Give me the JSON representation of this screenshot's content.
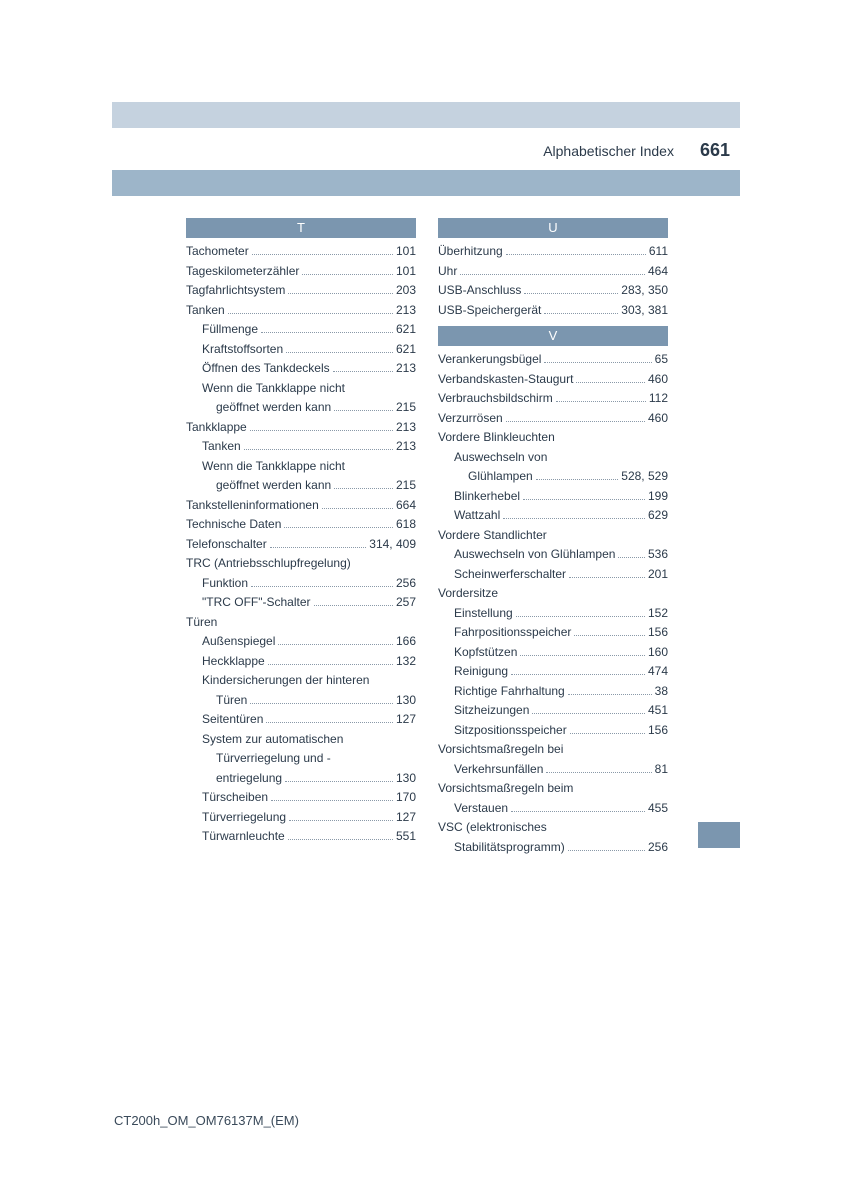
{
  "header": {
    "title": "Alphabetischer Index",
    "page_number": "661"
  },
  "footer": "CT200h_OM_OM76137M_(EM)",
  "colors": {
    "top_bar": "#c5d2df",
    "second_bar": "#9db5c9",
    "section_bg": "#7b96af",
    "section_fg": "#ffffff",
    "text": "#2b3a4a",
    "dots": "#8a99a8",
    "page_bg": "#ffffff"
  },
  "left_column": [
    {
      "type": "section",
      "label": "T"
    },
    {
      "type": "entry",
      "indent": 0,
      "label": "Tachometer",
      "page": "101"
    },
    {
      "type": "entry",
      "indent": 0,
      "label": "Tageskilometerzähler",
      "page": "101"
    },
    {
      "type": "entry",
      "indent": 0,
      "label": "Tagfahrlichtsystem",
      "page": "203"
    },
    {
      "type": "entry",
      "indent": 0,
      "label": "Tanken",
      "page": "213"
    },
    {
      "type": "entry",
      "indent": 1,
      "label": "Füllmenge",
      "page": "621"
    },
    {
      "type": "entry",
      "indent": 1,
      "label": "Kraftstoffsorten",
      "page": "621"
    },
    {
      "type": "entry",
      "indent": 1,
      "label": "Öffnen des Tankdeckels",
      "page": "213"
    },
    {
      "type": "entry",
      "indent": 1,
      "label": "Wenn die Tankklappe nicht",
      "page": ""
    },
    {
      "type": "entry",
      "indent": 2,
      "label": "geöffnet werden kann",
      "page": "215"
    },
    {
      "type": "entry",
      "indent": 0,
      "label": "Tankklappe",
      "page": "213"
    },
    {
      "type": "entry",
      "indent": 1,
      "label": "Tanken",
      "page": "213"
    },
    {
      "type": "entry",
      "indent": 1,
      "label": "Wenn die Tankklappe nicht",
      "page": ""
    },
    {
      "type": "entry",
      "indent": 2,
      "label": "geöffnet werden kann",
      "page": "215"
    },
    {
      "type": "entry",
      "indent": 0,
      "label": "Tankstelleninformationen",
      "page": "664"
    },
    {
      "type": "entry",
      "indent": 0,
      "label": "Technische Daten",
      "page": "618"
    },
    {
      "type": "entry",
      "indent": 0,
      "label": "Telefonschalter",
      "page": "314, 409"
    },
    {
      "type": "entry",
      "indent": 0,
      "label": "TRC (Antriebsschlupfregelung)",
      "page": ""
    },
    {
      "type": "entry",
      "indent": 1,
      "label": "Funktion",
      "page": "256"
    },
    {
      "type": "entry",
      "indent": 1,
      "label": "\"TRC OFF\"-Schalter",
      "page": "257"
    },
    {
      "type": "entry",
      "indent": 0,
      "label": "Türen",
      "page": ""
    },
    {
      "type": "entry",
      "indent": 1,
      "label": "Außenspiegel",
      "page": "166"
    },
    {
      "type": "entry",
      "indent": 1,
      "label": "Heckklappe",
      "page": "132"
    },
    {
      "type": "entry",
      "indent": 1,
      "label": "Kindersicherungen der hinteren",
      "page": ""
    },
    {
      "type": "entry",
      "indent": 2,
      "label": "Türen",
      "page": "130"
    },
    {
      "type": "entry",
      "indent": 1,
      "label": "Seitentüren",
      "page": "127"
    },
    {
      "type": "entry",
      "indent": 1,
      "label": "System zur automatischen",
      "page": ""
    },
    {
      "type": "entry",
      "indent": 2,
      "label": "Türverriegelung und -",
      "page": ""
    },
    {
      "type": "entry",
      "indent": 2,
      "label": "entriegelung",
      "page": "130"
    },
    {
      "type": "entry",
      "indent": 1,
      "label": "Türscheiben",
      "page": "170"
    },
    {
      "type": "entry",
      "indent": 1,
      "label": "Türverriegelung",
      "page": "127"
    },
    {
      "type": "entry",
      "indent": 1,
      "label": "Türwarnleuchte",
      "page": "551"
    }
  ],
  "right_column": [
    {
      "type": "section",
      "label": "U"
    },
    {
      "type": "entry",
      "indent": 0,
      "label": "Überhitzung",
      "page": "611"
    },
    {
      "type": "entry",
      "indent": 0,
      "label": "Uhr",
      "page": "464"
    },
    {
      "type": "entry",
      "indent": 0,
      "label": "USB-Anschluss",
      "page": "283, 350"
    },
    {
      "type": "entry",
      "indent": 0,
      "label": "USB-Speichergerät",
      "page": "303, 381"
    },
    {
      "type": "section",
      "label": "V"
    },
    {
      "type": "entry",
      "indent": 0,
      "label": "Verankerungsbügel",
      "page": "65"
    },
    {
      "type": "entry",
      "indent": 0,
      "label": "Verbandskasten-Staugurt",
      "page": "460"
    },
    {
      "type": "entry",
      "indent": 0,
      "label": "Verbrauchsbildschirm",
      "page": "112"
    },
    {
      "type": "entry",
      "indent": 0,
      "label": "Verzurrösen",
      "page": "460"
    },
    {
      "type": "entry",
      "indent": 0,
      "label": "Vordere Blinkleuchten",
      "page": ""
    },
    {
      "type": "entry",
      "indent": 1,
      "label": "Auswechseln von",
      "page": ""
    },
    {
      "type": "entry",
      "indent": 2,
      "label": "Glühlampen",
      "page": "528, 529"
    },
    {
      "type": "entry",
      "indent": 1,
      "label": "Blinkerhebel",
      "page": "199"
    },
    {
      "type": "entry",
      "indent": 1,
      "label": "Wattzahl",
      "page": "629"
    },
    {
      "type": "entry",
      "indent": 0,
      "label": "Vordere Standlichter",
      "page": ""
    },
    {
      "type": "entry",
      "indent": 1,
      "label": "Auswechseln von Glühlampen",
      "page": "536"
    },
    {
      "type": "entry",
      "indent": 1,
      "label": "Scheinwerferschalter",
      "page": "201"
    },
    {
      "type": "entry",
      "indent": 0,
      "label": "Vordersitze",
      "page": ""
    },
    {
      "type": "entry",
      "indent": 1,
      "label": "Einstellung",
      "page": "152"
    },
    {
      "type": "entry",
      "indent": 1,
      "label": "Fahrpositionsspeicher",
      "page": "156"
    },
    {
      "type": "entry",
      "indent": 1,
      "label": "Kopfstützen",
      "page": "160"
    },
    {
      "type": "entry",
      "indent": 1,
      "label": "Reinigung",
      "page": "474"
    },
    {
      "type": "entry",
      "indent": 1,
      "label": "Richtige Fahrhaltung",
      "page": "38"
    },
    {
      "type": "entry",
      "indent": 1,
      "label": "Sitzheizungen",
      "page": "451"
    },
    {
      "type": "entry",
      "indent": 1,
      "label": "Sitzpositionsspeicher",
      "page": "156"
    },
    {
      "type": "entry",
      "indent": 0,
      "label": "Vorsichtsmaßregeln bei",
      "page": ""
    },
    {
      "type": "entry",
      "indent": 1,
      "label": "Verkehrsunfällen",
      "page": "81"
    },
    {
      "type": "entry",
      "indent": 0,
      "label": "Vorsichtsmaßregeln beim",
      "page": ""
    },
    {
      "type": "entry",
      "indent": 1,
      "label": "Verstauen",
      "page": "455"
    },
    {
      "type": "entry",
      "indent": 0,
      "label": "VSC (elektronisches",
      "page": ""
    },
    {
      "type": "entry",
      "indent": 1,
      "label": "Stabilitätsprogramm)",
      "page": "256"
    }
  ]
}
